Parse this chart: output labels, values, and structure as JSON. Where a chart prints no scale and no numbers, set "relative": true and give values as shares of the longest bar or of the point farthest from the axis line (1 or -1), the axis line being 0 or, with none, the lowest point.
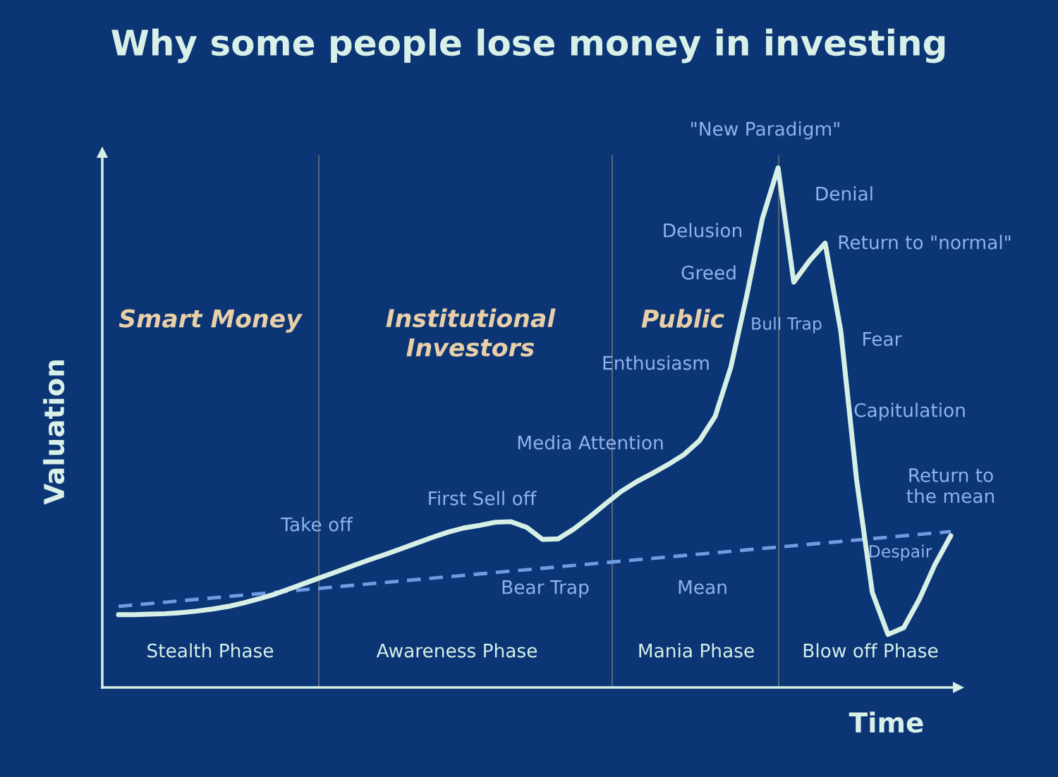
{
  "chart_data": {
    "type": "line",
    "title": "Why some people lose money in investing",
    "xlabel": "Time",
    "ylabel": "Valuation",
    "relative": true,
    "grid": false,
    "categories": [
      null,
      null,
      null,
      null,
      null,
      null,
      null,
      null,
      null,
      null,
      null,
      null,
      null,
      null,
      null,
      null,
      null,
      null,
      null,
      null,
      null,
      null,
      null,
      null,
      null,
      null,
      null,
      null,
      null,
      null,
      null,
      null,
      null,
      null,
      null,
      null,
      null,
      null,
      null,
      null,
      null,
      null,
      null,
      null,
      null,
      null,
      null,
      null,
      null,
      null,
      null,
      null,
      null,
      null
    ],
    "series": [
      {
        "color": "#d6f0e6",
        "line_style": "solid",
        "values": [
          0.14,
          0.14,
          0.141,
          0.142,
          0.144,
          0.147,
          0.151,
          0.156,
          0.163,
          0.171,
          0.18,
          0.191,
          0.202,
          0.213,
          0.224,
          0.235,
          0.246,
          0.256,
          0.267,
          0.278,
          0.289,
          0.299,
          0.307,
          0.312,
          0.318,
          0.319,
          0.308,
          0.285,
          0.286,
          0.305,
          0.328,
          0.353,
          0.377,
          0.396,
          0.412,
          0.429,
          0.448,
          0.475,
          0.522,
          0.617,
          0.753,
          0.902,
          1,
          0.78,
          0.821,
          0.855,
          0.685,
          0.4,
          0.183,
          0.102,
          0.115,
          0.17,
          0.237,
          0.292
        ]
      },
      {
        "name": "Mean",
        "color": "#6f9be0",
        "line_style": "dashed",
        "values": [
          0.156,
          null,
          null,
          null,
          null,
          null,
          null,
          null,
          null,
          null,
          null,
          null,
          null,
          null,
          null,
          null,
          null,
          null,
          null,
          null,
          null,
          null,
          null,
          null,
          null,
          null,
          null,
          null,
          null,
          null,
          null,
          null,
          null,
          null,
          null,
          null,
          null,
          null,
          null,
          null,
          null,
          null,
          null,
          null,
          null,
          null,
          null,
          null,
          null,
          null,
          null,
          null,
          null,
          0.3
        ]
      }
    ],
    "annotations": [
      "Take off",
      "First Sell off",
      "Media Attention",
      "Bear Trap",
      "Enthusiasm",
      "Greed",
      "Delusion",
      "\"New Paradigm\"",
      "Bull Trap",
      "Denial",
      "Return to \"normal\"",
      "Fear",
      "Capitulation",
      "Return to\nthe mean",
      "Despair",
      "Smart Money",
      "Institutional\nInvestors",
      "Public",
      "Stealth Phase",
      "Awareness Phase",
      "Mania Phase",
      "Blow off Phase"
    ]
  }
}
